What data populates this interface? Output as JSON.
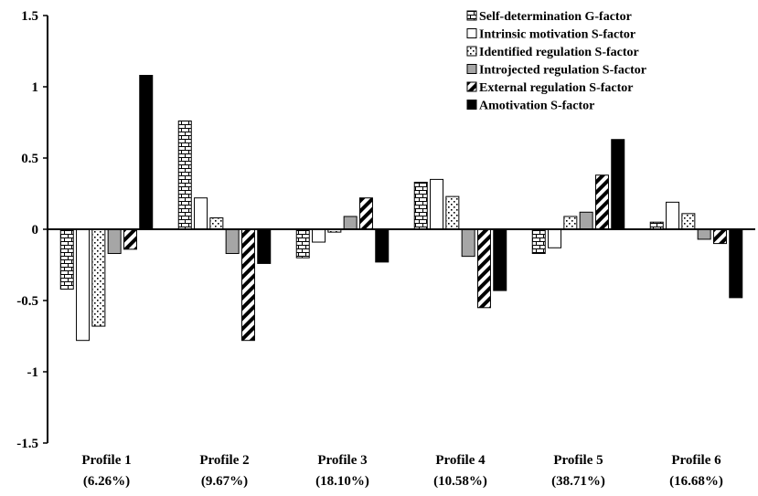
{
  "chart_data": {
    "type": "bar",
    "categories": [
      {
        "name": "Profile 1",
        "share": "(6.26%)"
      },
      {
        "name": "Profile 2",
        "share": "(9.67%)"
      },
      {
        "name": "Profile 3",
        "share": "(18.10%)"
      },
      {
        "name": "Profile 4",
        "share": "(10.58%)"
      },
      {
        "name": "Profile 5",
        "share": "(38.71%)"
      },
      {
        "name": "Profile 6",
        "share": "(16.68%)"
      }
    ],
    "series": [
      {
        "name": "Self-determination G-factor",
        "pattern": "bricks",
        "values": [
          -0.42,
          0.76,
          -0.2,
          0.33,
          -0.17,
          0.05
        ]
      },
      {
        "name": "Intrinsic motivation S-factor",
        "pattern": "white",
        "values": [
          -0.78,
          0.22,
          -0.09,
          0.35,
          -0.13,
          0.19
        ]
      },
      {
        "name": "Identified regulation S-factor",
        "pattern": "dots",
        "values": [
          -0.68,
          0.08,
          -0.02,
          0.23,
          0.09,
          0.11
        ]
      },
      {
        "name": "Introjected regulation S-factor",
        "pattern": "gray",
        "values": [
          -0.17,
          -0.17,
          0.09,
          -0.19,
          0.12,
          -0.07
        ]
      },
      {
        "name": "External regulation S-factor",
        "pattern": "diagonal",
        "values": [
          -0.14,
          -0.78,
          0.22,
          -0.55,
          0.38,
          -0.1
        ]
      },
      {
        "name": "Amotivation S-factor",
        "pattern": "black",
        "values": [
          1.08,
          -0.24,
          -0.23,
          -0.43,
          0.63,
          -0.48
        ]
      }
    ],
    "yticks": [
      "1.5",
      "1",
      "0.5",
      "0",
      "-0.5",
      "-1",
      "-1.5"
    ],
    "ytick_values": [
      1.5,
      1,
      0.5,
      0,
      -0.5,
      -1,
      -1.5
    ],
    "ylim": [
      -1.5,
      1.5
    ],
    "legend_position": "top-right",
    "grid": false
  }
}
